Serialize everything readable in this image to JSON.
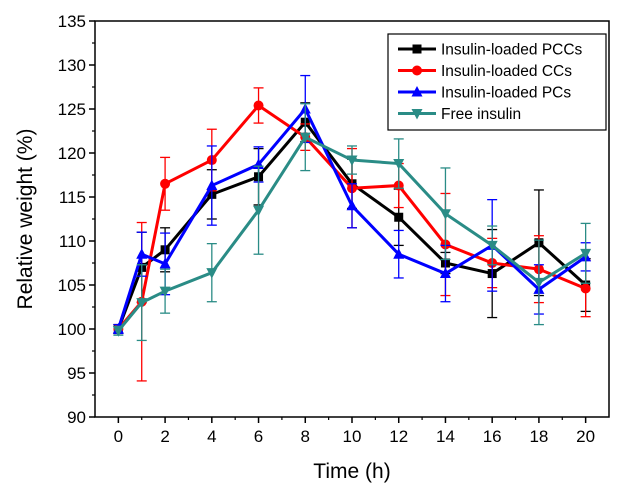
{
  "chart_data": {
    "type": "line",
    "title": "",
    "xlabel": "Time (h)",
    "ylabel": "Relative weight (%)",
    "xlim": [
      -1,
      21
    ],
    "ylim": [
      90,
      135
    ],
    "xticks": [
      0,
      2,
      4,
      6,
      8,
      10,
      12,
      14,
      16,
      18,
      20
    ],
    "yticks": [
      90,
      95,
      100,
      105,
      110,
      115,
      120,
      125,
      130,
      135
    ],
    "grid": false,
    "legend_position": "top-right",
    "x": [
      0,
      1,
      2,
      4,
      6,
      8,
      10,
      12,
      14,
      16,
      18,
      20
    ],
    "series": [
      {
        "name": "Insulin-loaded PCCs",
        "color": "#000000",
        "marker": "square",
        "values": [
          100,
          107.0,
          109.0,
          115.3,
          117.3,
          123.5,
          116.5,
          112.7,
          107.5,
          106.3,
          109.8,
          105.0
        ],
        "errors": [
          0.5,
          4.0,
          2.5,
          2.8,
          3.2,
          2.2,
          2.8,
          3.2,
          1.2,
          5.0,
          6.0,
          3.0
        ]
      },
      {
        "name": "Insulin-loaded CCs",
        "color": "#ff0000",
        "marker": "circle",
        "values": [
          100,
          103.1,
          116.5,
          119.2,
          125.4,
          121.8,
          116.0,
          116.3,
          109.6,
          107.5,
          106.8,
          104.6
        ],
        "errors": [
          0.5,
          9.0,
          3.0,
          3.5,
          2.0,
          1.5,
          4.5,
          2.5,
          5.8,
          2.8,
          3.8,
          3.2
        ]
      },
      {
        "name": "Insulin-loaded PCs",
        "color": "#0000ff",
        "marker": "triangle-up",
        "values": [
          100,
          108.5,
          107.4,
          116.3,
          118.7,
          125.0,
          114.0,
          108.5,
          106.3,
          109.5,
          104.5,
          108.2
        ],
        "errors": [
          0.5,
          2.5,
          3.5,
          4.5,
          2.0,
          3.8,
          2.5,
          2.7,
          3.2,
          5.2,
          2.8,
          1.6
        ]
      },
      {
        "name": "Free insulin",
        "color": "#2a8c86",
        "marker": "triangle-down",
        "values": [
          99.8,
          103.0,
          104.3,
          106.4,
          113.5,
          121.8,
          119.2,
          118.8,
          113.1,
          109.5,
          105.3,
          108.6
        ],
        "errors": [
          0.5,
          4.3,
          2.5,
          3.3,
          5.0,
          3.8,
          1.6,
          2.8,
          5.2,
          2.2,
          4.8,
          3.4
        ]
      }
    ]
  }
}
